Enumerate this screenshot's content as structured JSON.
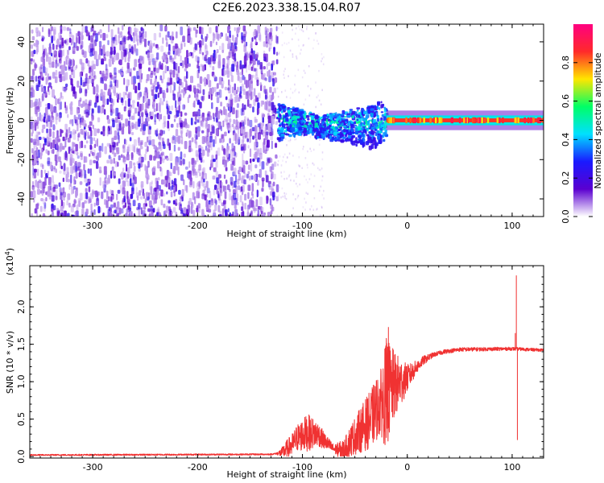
{
  "title": "C2E6.2023.338.15.04.R07",
  "colors": {
    "snr_line": "#f03232",
    "axis": "#000000",
    "background": "#ffffff"
  },
  "chart_data": [
    {
      "type": "heatmap",
      "xlabel": "Height of straight line (km)",
      "ylabel": "Frequency (Hz)",
      "xlim": [
        -360,
        130
      ],
      "ylim": [
        -49,
        49
      ],
      "x_ticks": [
        -300,
        -200,
        -100,
        0,
        100
      ],
      "x_tick_labels": [
        "-300",
        "-200",
        "-100",
        "0",
        "100"
      ],
      "y_ticks": [
        -40,
        -20,
        0,
        20,
        40
      ],
      "y_tick_labels": [
        "-40",
        "-20",
        "0",
        "20",
        "40"
      ],
      "grid": false,
      "features": [
        {
          "region": "noise",
          "x_range": [
            -360,
            -125
          ],
          "y_range": [
            -49,
            49
          ],
          "amplitude": [
            0.05,
            0.25
          ]
        },
        {
          "region": "band",
          "x_range": [
            -125,
            -20
          ],
          "y_center": 0,
          "half_width": 8,
          "amplitude": [
            0.2,
            0.6
          ]
        },
        {
          "region": "carrier",
          "x_range": [
            -20,
            130
          ],
          "y_center": 0,
          "half_width": 2.5,
          "amplitude": [
            0.7,
            0.95
          ]
        }
      ],
      "colorbar": {
        "label": "Normalized spectral amplitude",
        "range": [
          0,
          1
        ],
        "ticks": [
          0.0,
          0.2,
          0.4,
          0.6,
          0.8
        ],
        "tick_labels": [
          "0.0",
          "0.2",
          "0.4",
          "0.6",
          "0.8"
        ],
        "colormap": [
          "#ffffff",
          "#5a00d0",
          "#1a1aff",
          "#00e0ff",
          "#00ff66",
          "#ffe600",
          "#ff2a2a",
          "#ff0080"
        ]
      }
    },
    {
      "type": "line",
      "xlabel": "Height of straight line (km)",
      "ylabel": "SNR (10 * v/v)",
      "multiplier_label": "(x10",
      "multiplier_exponent": "4",
      "multiplier_suffix": ")",
      "xlim": [
        -360,
        130
      ],
      "ylim": [
        -0.02,
        2.55
      ],
      "x_ticks": [
        -300,
        -200,
        -100,
        0,
        100
      ],
      "x_tick_labels": [
        "-300",
        "-200",
        "-100",
        "0",
        "100"
      ],
      "y_ticks": [
        0.0,
        0.5,
        1.0,
        1.5,
        2.0
      ],
      "y_tick_labels": [
        "0.0",
        "0.5",
        "1.0",
        "1.5",
        "2.0"
      ],
      "grid": false,
      "series": [
        {
          "color": "#f03232",
          "envelope": [
            [
              -360,
              0.02
            ],
            [
              -130,
              0.03
            ],
            [
              -120,
              0.05
            ],
            [
              -110,
              0.15
            ],
            [
              -105,
              0.25
            ],
            [
              -95,
              0.32
            ],
            [
              -85,
              0.3
            ],
            [
              -80,
              0.22
            ],
            [
              -70,
              0.1
            ],
            [
              -60,
              0.08
            ],
            [
              -55,
              0.2
            ],
            [
              -45,
              0.35
            ],
            [
              -35,
              0.5
            ],
            [
              -30,
              0.62
            ],
            [
              -24,
              0.75
            ],
            [
              -18,
              0.88
            ],
            [
              -12,
              0.95
            ],
            [
              -5,
              1.0
            ],
            [
              0,
              1.05
            ],
            [
              8,
              1.18
            ],
            [
              15,
              1.28
            ],
            [
              25,
              1.36
            ],
            [
              35,
              1.4
            ],
            [
              50,
              1.43
            ],
            [
              100,
              1.44
            ],
            [
              130,
              1.42
            ]
          ],
          "noise_amplitude": [
            [
              -360,
              0.01
            ],
            [
              -125,
              0.01
            ],
            [
              -115,
              0.12
            ],
            [
              -95,
              0.25
            ],
            [
              -80,
              0.12
            ],
            [
              -70,
              0.06
            ],
            [
              -55,
              0.2
            ],
            [
              -40,
              0.35
            ],
            [
              -25,
              0.45
            ],
            [
              -20,
              0.75
            ],
            [
              -12,
              0.45
            ],
            [
              -5,
              0.3
            ],
            [
              0,
              0.18
            ],
            [
              10,
              0.08
            ],
            [
              25,
              0.03
            ],
            [
              130,
              0.02
            ]
          ],
          "spikes": [
            {
              "x": -18,
              "y": 1.73
            },
            {
              "x": -20,
              "y": 0.25
            },
            {
              "x": 104,
              "y": 2.42
            },
            {
              "x": 105,
              "y": 0.22
            },
            {
              "x": 103,
              "y": 1.65
            }
          ]
        }
      ]
    }
  ]
}
